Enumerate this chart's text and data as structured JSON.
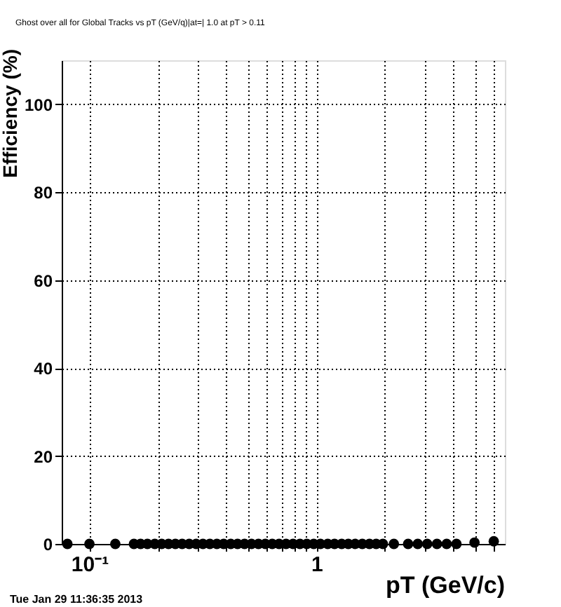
{
  "chart_data": {
    "type": "scatter",
    "title": "Ghost over all for Global Tracks vs pT (GeV/q)|at=| 1.0 at pT > 0.11",
    "xlabel": "pT (GeV/c)",
    "ylabel": "Efficiency (%)",
    "annotations": [
      "Tue Jan 29 11:36:35 2013"
    ],
    "x": [
      0.08,
      0.1,
      0.13,
      0.157,
      0.168,
      0.18,
      0.194,
      0.208,
      0.223,
      0.239,
      0.256,
      0.275,
      0.295,
      0.316,
      0.339,
      0.364,
      0.39,
      0.419,
      0.449,
      0.482,
      0.517,
      0.555,
      0.595,
      0.638,
      0.684,
      0.734,
      0.788,
      0.845,
      0.906,
      0.972,
      1.04,
      1.12,
      1.2,
      1.29,
      1.38,
      1.48,
      1.59,
      1.71,
      1.83,
      1.96,
      2.19,
      2.53,
      2.79,
      3.07,
      3.39,
      3.74,
      4.13,
      4.96,
      6.03
    ],
    "series": [
      {
        "color": "#000000",
        "values": [
          0,
          0,
          0,
          0,
          0,
          0,
          0,
          0,
          0,
          0,
          0,
          0,
          0,
          0,
          0,
          0,
          0,
          0,
          0,
          0,
          0,
          0,
          0,
          0,
          0,
          0,
          0,
          0,
          0,
          0,
          0,
          0,
          0,
          0,
          0,
          0,
          0,
          0,
          0,
          0,
          0,
          0,
          0,
          0,
          0,
          0,
          0,
          0.3,
          0.6
        ]
      }
    ],
    "log": "x",
    "marker": "circle",
    "grid": true,
    "legend": false,
    "xlim": [
      0.0755,
      6.75
    ],
    "xticks": [
      {
        "value": 0.1,
        "label": "10⁻¹"
      },
      {
        "value": 0.2,
        "label": null
      },
      {
        "value": 0.3,
        "label": null
      },
      {
        "value": 0.4,
        "label": null
      },
      {
        "value": 0.5,
        "label": null
      },
      {
        "value": 0.6,
        "label": null
      },
      {
        "value": 0.7,
        "label": null
      },
      {
        "value": 0.8,
        "label": null
      },
      {
        "value": 0.9,
        "label": null
      },
      1,
      {
        "value": 2,
        "label": null
      },
      {
        "value": 3,
        "label": null
      },
      {
        "value": 4,
        "label": null
      },
      {
        "value": 5,
        "label": null
      },
      {
        "value": 6,
        "label": null
      }
    ],
    "ylim": [
      0,
      110
    ],
    "yticks": [
      0,
      20,
      40,
      60,
      80,
      100
    ]
  }
}
